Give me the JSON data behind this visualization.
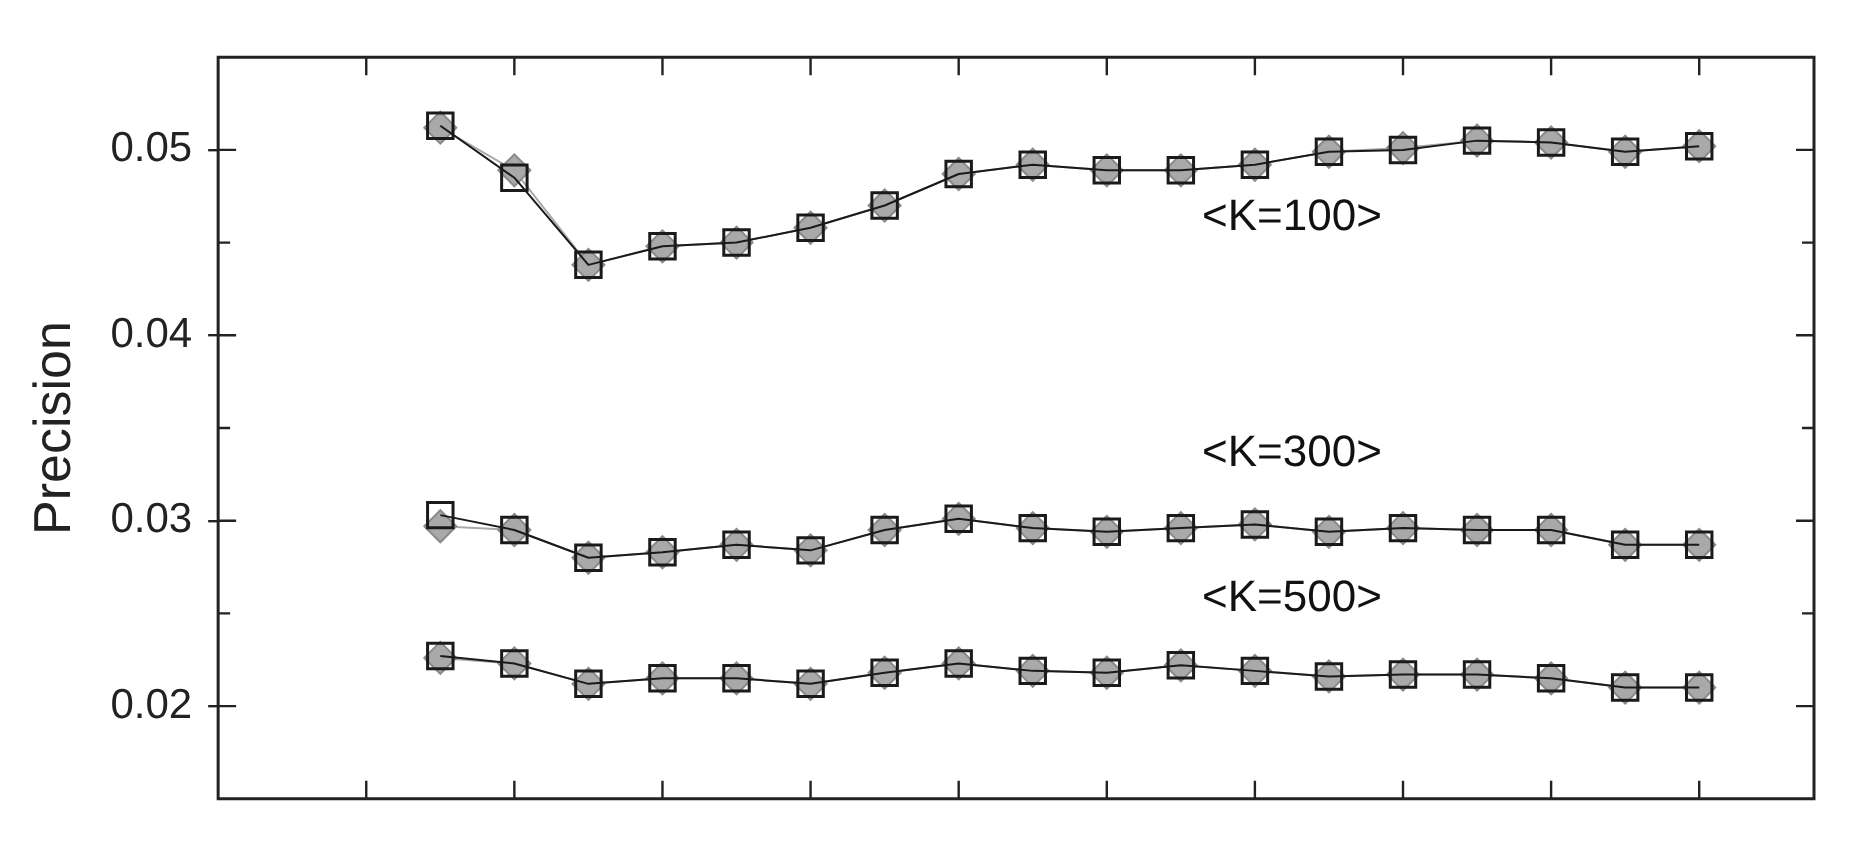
{
  "chart_data": {
    "type": "line",
    "ylabel": "Precision",
    "categories": [
      null,
      null,
      null,
      null,
      null,
      null,
      null,
      null,
      null,
      null,
      null,
      null,
      null,
      null,
      null,
      null,
      null,
      null
    ],
    "ylim": [
      0.015,
      0.055
    ],
    "yticks": [
      0.02,
      0.03,
      0.04,
      0.05
    ],
    "grid": false,
    "line_style": "solid",
    "series": [
      {
        "color": "#a9a9a9",
        "marker": "diamond",
        "values": [
          0.0512,
          0.0489,
          0.0438,
          0.0448,
          0.045,
          0.0458,
          0.047,
          0.0487,
          0.0492,
          0.0489,
          0.0489,
          0.0492,
          0.0499,
          0.0501,
          0.0505,
          0.0504,
          0.0499,
          0.0502
        ]
      },
      {
        "name": "<K=100>",
        "color": "#1a1a1a",
        "marker": "square",
        "values": [
          0.0513,
          0.0485,
          0.0438,
          0.0448,
          0.045,
          0.0458,
          0.047,
          0.0487,
          0.0492,
          0.0489,
          0.0489,
          0.0492,
          0.0499,
          0.05,
          0.0505,
          0.0504,
          0.0499,
          0.0502
        ]
      },
      {
        "color": "#a9a9a9",
        "marker": "diamond",
        "values": [
          0.0297,
          0.0295,
          0.028,
          0.0283,
          0.0287,
          0.0284,
          0.0295,
          0.0301,
          0.0296,
          0.0294,
          0.0296,
          0.0298,
          0.0294,
          0.0296,
          0.0295,
          0.0295,
          0.0287,
          0.0287
        ]
      },
      {
        "name": "<K=300>",
        "color": "#1a1a1a",
        "marker": "square",
        "values": [
          0.0303,
          0.0295,
          0.028,
          0.0283,
          0.0287,
          0.0284,
          0.0295,
          0.0301,
          0.0296,
          0.0294,
          0.0296,
          0.0298,
          0.0294,
          0.0296,
          0.0295,
          0.0295,
          0.0287,
          0.0287
        ]
      },
      {
        "color": "#a9a9a9",
        "marker": "diamond",
        "values": [
          0.0226,
          0.0223,
          0.0212,
          0.0215,
          0.0215,
          0.0212,
          0.0218,
          0.0223,
          0.0219,
          0.0218,
          0.0222,
          0.0219,
          0.0216,
          0.0217,
          0.0217,
          0.0215,
          0.021,
          0.021
        ]
      },
      {
        "name": "<K=500>",
        "color": "#1a1a1a",
        "marker": "square",
        "values": [
          0.0227,
          0.0223,
          0.0212,
          0.0215,
          0.0215,
          0.0212,
          0.0218,
          0.0223,
          0.0219,
          0.0218,
          0.0222,
          0.0219,
          0.0216,
          0.0217,
          0.0217,
          0.0215,
          0.021,
          0.021
        ]
      }
    ]
  }
}
